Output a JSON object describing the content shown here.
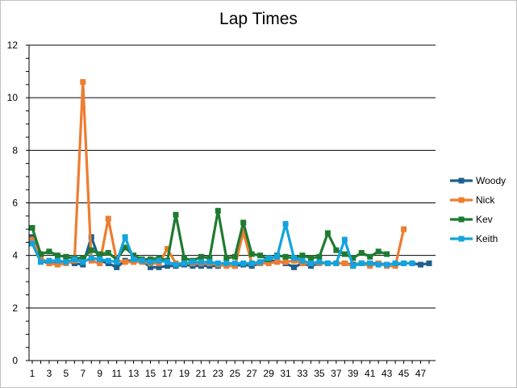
{
  "chart_data": {
    "type": "line",
    "title": "Lap Times",
    "xlabel": "",
    "ylabel": "",
    "ylim": [
      0,
      12
    ],
    "yticks": [
      0,
      2,
      4,
      6,
      8,
      10,
      12
    ],
    "xlim": [
      1,
      48
    ],
    "xtick_labels": [
      "1",
      "3",
      "5",
      "7",
      "9",
      "11",
      "13",
      "15",
      "17",
      "19",
      "21",
      "23",
      "25",
      "27",
      "29",
      "31",
      "33",
      "35",
      "37",
      "39",
      "41",
      "43",
      "45",
      "47"
    ],
    "grid": true,
    "legend_position": "right",
    "series": [
      {
        "name": "Woody",
        "color": "#1f5f8b",
        "marker": "square",
        "values": [
          4.7,
          3.8,
          3.7,
          3.7,
          3.8,
          3.7,
          3.65,
          4.7,
          3.8,
          3.7,
          3.55,
          3.8,
          3.8,
          3.8,
          3.55,
          3.55,
          3.6,
          3.6,
          3.65,
          3.6,
          3.6,
          3.6,
          3.6,
          3.65,
          3.6,
          3.65,
          3.6,
          3.7,
          3.8,
          3.8,
          3.7,
          3.55,
          3.7,
          3.6,
          3.7,
          3.7,
          3.7,
          3.7,
          3.65,
          3.7,
          3.7,
          3.7,
          3.65,
          3.65,
          3.7,
          3.7,
          3.65,
          3.7
        ]
      },
      {
        "name": "Nick",
        "color": "#ed7d31",
        "marker": "square",
        "values": [
          4.6,
          3.9,
          3.7,
          3.65,
          3.7,
          3.8,
          10.6,
          3.8,
          3.7,
          5.4,
          3.8,
          3.75,
          3.75,
          3.75,
          3.7,
          3.7,
          4.25,
          3.7,
          3.7,
          3.7,
          3.7,
          3.7,
          3.65,
          3.6,
          3.6,
          4.9,
          3.7,
          3.7,
          3.7,
          3.75,
          3.75,
          3.8,
          3.7,
          3.7,
          3.7,
          3.7,
          3.7,
          3.7,
          3.6,
          3.7,
          3.6,
          3.7,
          3.6,
          3.6,
          5.0
        ]
      },
      {
        "name": "Kev",
        "color": "#1e7b30",
        "marker": "square",
        "values": [
          5.05,
          4.05,
          4.15,
          4.0,
          3.95,
          3.9,
          3.9,
          4.2,
          4.05,
          4.1,
          3.85,
          4.3,
          4.0,
          3.85,
          3.85,
          3.9,
          3.8,
          5.55,
          3.9,
          3.8,
          3.95,
          3.9,
          5.7,
          3.9,
          3.95,
          5.25,
          4.05,
          4.0,
          3.85,
          4.0,
          3.95,
          3.9,
          4.0,
          3.9,
          3.95,
          4.85,
          4.2,
          4.05,
          3.9,
          4.1,
          3.95,
          4.15,
          4.05
        ]
      },
      {
        "name": "Keith",
        "color": "#13a3de",
        "marker": "square",
        "values": [
          4.45,
          3.75,
          3.8,
          3.8,
          3.75,
          3.85,
          3.75,
          3.9,
          3.85,
          3.8,
          3.75,
          4.7,
          3.85,
          3.8,
          3.75,
          3.8,
          3.75,
          3.65,
          3.7,
          3.75,
          3.75,
          3.75,
          3.7,
          3.7,
          3.7,
          3.7,
          3.7,
          3.75,
          3.9,
          3.95,
          5.2,
          3.9,
          3.8,
          3.7,
          3.75,
          3.7,
          3.7,
          4.6,
          3.6,
          3.7,
          3.7,
          3.65,
          3.65,
          3.7,
          3.7,
          3.7
        ]
      }
    ]
  }
}
